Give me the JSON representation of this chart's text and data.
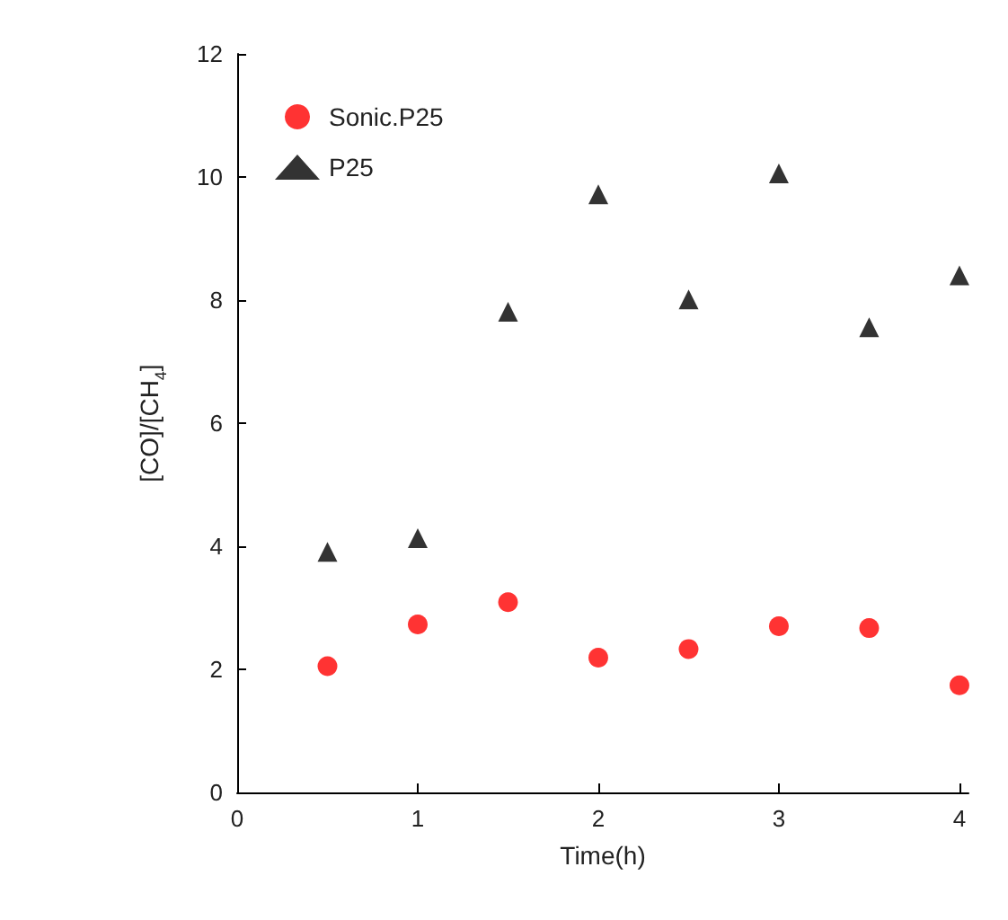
{
  "chart_data": {
    "type": "scatter",
    "xlabel": "Time(h)",
    "ylabel": "[CO]/[CH$_{4}$]",
    "x": [
      0.5,
      1,
      1.5,
      2,
      2.5,
      3,
      3.5,
      4
    ],
    "series": [
      {
        "name": "Sonic.P25",
        "color": "#ff0000",
        "marker": "circle",
        "values": [
          2.05,
          2.73,
          3.09,
          2.19,
          2.33,
          2.7,
          2.67,
          1.74
        ]
      },
      {
        "name": "P25",
        "color": "#000000",
        "marker": "triangle",
        "values": [
          3.91,
          4.13,
          7.81,
          9.72,
          8.01,
          10.06,
          7.56,
          8.4
        ]
      }
    ],
    "xlim": [
      0,
      4.05
    ],
    "xticks": [
      0,
      1,
      2,
      3,
      4
    ],
    "ylim": [
      0,
      12
    ],
    "yticks": [
      0,
      2,
      4,
      6,
      8,
      10,
      12
    ],
    "grid": false,
    "legend": "top left"
  }
}
